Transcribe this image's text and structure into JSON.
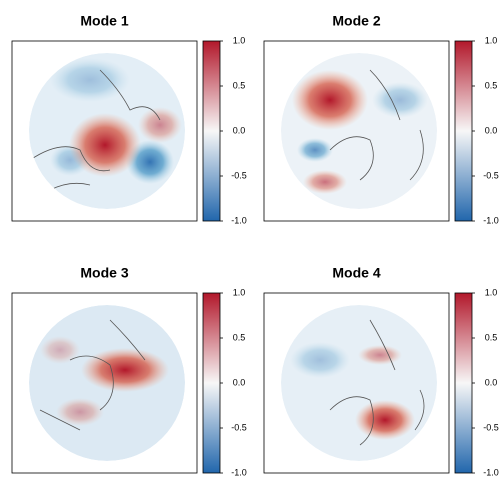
{
  "chart_data": [
    {
      "type": "heatmap",
      "title": "Mode 1",
      "clim": [
        -1,
        1
      ],
      "colormap": [
        "#2166ac",
        "#f7f7f7",
        "#b2182b"
      ],
      "cticks": [
        {
          "value": -1,
          "label": "-1.0"
        },
        {
          "value": -0.5,
          "label": "-0.5"
        },
        {
          "value": 0,
          "label": "0.0"
        },
        {
          "value": 0.5,
          "label": "0.5"
        },
        {
          "value": 1,
          "label": "1.0"
        }
      ]
    },
    {
      "type": "heatmap",
      "title": "Mode 2",
      "clim": [
        -1,
        1
      ],
      "colormap": [
        "#2166ac",
        "#f7f7f7",
        "#b2182b"
      ],
      "cticks": [
        {
          "value": -1,
          "label": "-1.0"
        },
        {
          "value": -0.5,
          "label": "-0.5"
        },
        {
          "value": 0,
          "label": "0.0"
        },
        {
          "value": 0.5,
          "label": "0.5"
        },
        {
          "value": 1,
          "label": "1.0"
        }
      ]
    },
    {
      "type": "heatmap",
      "title": "Mode 3",
      "clim": [
        -1,
        1
      ],
      "colormap": [
        "#2166ac",
        "#f7f7f7",
        "#b2182b"
      ],
      "cticks": [
        {
          "value": -1,
          "label": "-1.0"
        },
        {
          "value": -0.5,
          "label": "-0.5"
        },
        {
          "value": 0,
          "label": "0.0"
        },
        {
          "value": 0.5,
          "label": "0.5"
        },
        {
          "value": 1,
          "label": "1.0"
        }
      ]
    },
    {
      "type": "heatmap",
      "title": "Mode 4",
      "clim": [
        -1,
        1
      ],
      "colormap": [
        "#2166ac",
        "#f7f7f7",
        "#b2182b"
      ],
      "cticks": [
        {
          "value": -1,
          "label": "-1.0"
        },
        {
          "value": -0.5,
          "label": "-0.5"
        },
        {
          "value": 0,
          "label": "0.0"
        },
        {
          "value": 0.5,
          "label": "0.5"
        },
        {
          "value": 1,
          "label": "1.0"
        }
      ]
    }
  ]
}
